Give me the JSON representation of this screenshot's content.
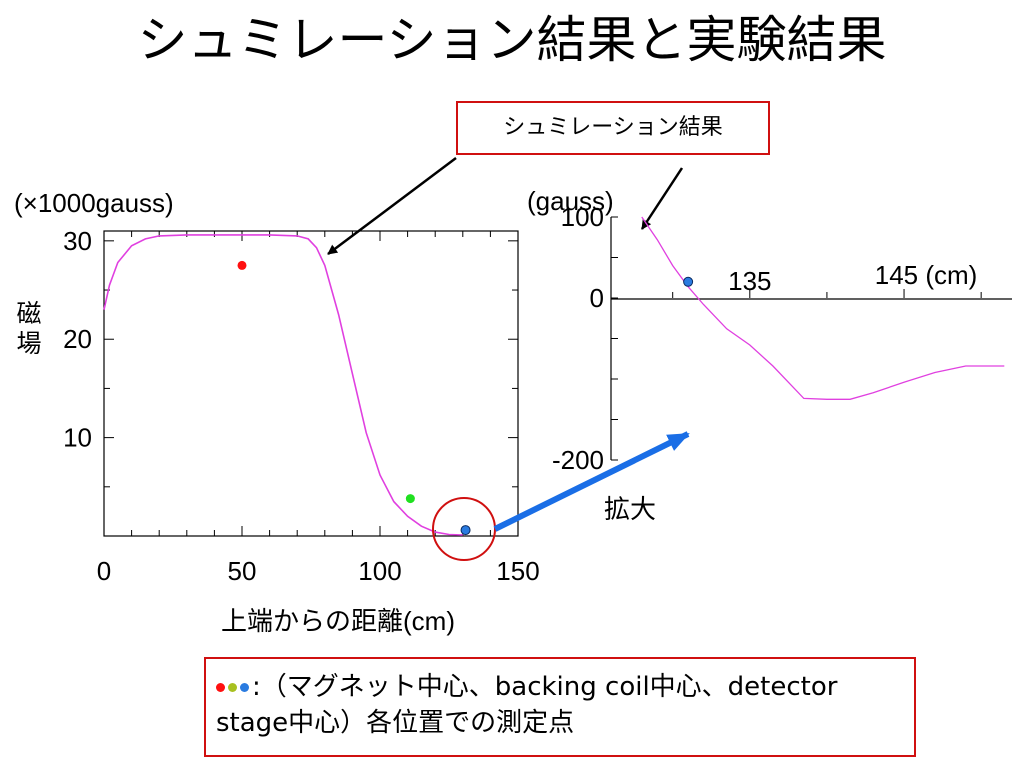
{
  "slide": {
    "title": "シュミレーション結果と実験結果",
    "callout_label": "シュミレーション結果",
    "zoom_label": "拡大",
    "legend": {
      "colon": ":",
      "line1": "（マグネット中心、backing coil中心、detector",
      "line2": "stage中心）各位置での測定点"
    }
  },
  "colors": {
    "curve": "#e040e0",
    "magnet_center": "#ff1010",
    "backing_coil": "#20e020",
    "detector_stage": "#2a7be0",
    "legend_dot_green": "#a8c020",
    "frame": "#d01010",
    "arrow": "#1a6ee6"
  },
  "chart_data": [
    {
      "type": "line",
      "title": "",
      "xlabel": "上端からの距離(cm)",
      "ylabel": "磁場",
      "unit_label": "(×1000gauss)",
      "xlim": [
        0,
        150
      ],
      "ylim": [
        0,
        31
      ],
      "xticks": [
        0,
        50,
        100,
        150
      ],
      "yticks": [
        10,
        20,
        30
      ],
      "ytick_labels": [
        "10",
        "20",
        "30"
      ],
      "grid": false,
      "series": [
        {
          "x": [
            0,
            2,
            5,
            10,
            15,
            20,
            30,
            40,
            50,
            60,
            70,
            74,
            77,
            80,
            85,
            90,
            95,
            100,
            105,
            110,
            115,
            120,
            125,
            130
          ],
          "y": [
            23,
            25.5,
            27.8,
            29.5,
            30.2,
            30.5,
            30.6,
            30.6,
            30.6,
            30.6,
            30.5,
            30.2,
            29.3,
            27.5,
            22.5,
            16.5,
            10.5,
            6.2,
            3.5,
            2.0,
            1.0,
            0.4,
            0.15,
            0.1
          ]
        }
      ],
      "points": [
        {
          "x": 50,
          "y": 27.5,
          "color": "#ff1010"
        },
        {
          "x": 111,
          "y": 3.8,
          "color": "#20e020"
        },
        {
          "x": 131,
          "y": 0.6,
          "color": "#2a7be0"
        }
      ]
    },
    {
      "type": "line",
      "title": "",
      "xlabel": "",
      "ylabel": "",
      "unit_label": "(gauss)",
      "xlim": [
        126,
        152
      ],
      "ylim": [
        -200,
        100
      ],
      "xtick_values": [
        135,
        145
      ],
      "xtick_labels": [
        "135",
        "145 (cm)"
      ],
      "yticks": [
        100,
        0,
        -200
      ],
      "ytick_labels": [
        "100",
        "0",
        "-200"
      ],
      "grid": false,
      "series": [
        {
          "x": [
            128,
            129,
            130,
            131,
            132,
            133.5,
            135,
            136.5,
            138.5,
            140,
            141.5,
            143,
            145,
            147,
            149,
            151.5
          ],
          "y": [
            100,
            72,
            40,
            14,
            -8,
            -38,
            -58,
            -84,
            -124,
            -125,
            -125,
            -117,
            -104,
            -92,
            -84,
            -84
          ]
        }
      ],
      "points": [
        {
          "x": 131,
          "y": 20,
          "color": "#2a7be0"
        }
      ]
    }
  ]
}
